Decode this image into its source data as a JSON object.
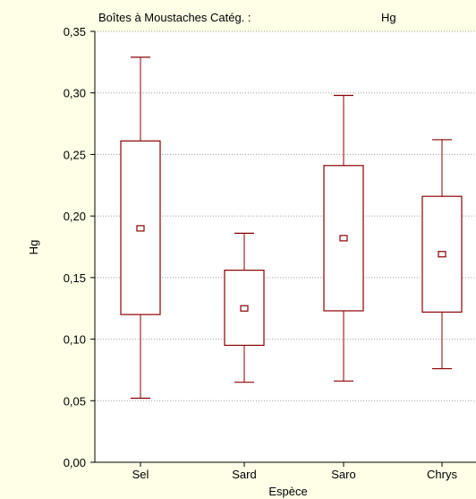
{
  "chart_data": {
    "type": "boxplot",
    "title": "Boîtes à Moustaches Catég. :",
    "variable": "Hg",
    "xlabel": "Espèce",
    "ylabel": "Hg",
    "categories": [
      "Sel",
      "Sard",
      "Saro",
      "Chrys"
    ],
    "ylim": [
      0.0,
      0.35
    ],
    "yticks": [
      "0,00",
      "0,05",
      "0,10",
      "0,15",
      "0,20",
      "0,25",
      "0,30",
      "0,35"
    ],
    "grid": "dotted horizontal",
    "boxes": [
      {
        "category": "Sel",
        "whisker_low": 0.052,
        "q1": 0.12,
        "center": 0.19,
        "q3": 0.261,
        "whisker_high": 0.329
      },
      {
        "category": "Sard",
        "whisker_low": 0.065,
        "q1": 0.095,
        "center": 0.125,
        "q3": 0.156,
        "whisker_high": 0.186
      },
      {
        "category": "Saro",
        "whisker_low": 0.066,
        "q1": 0.123,
        "center": 0.182,
        "q3": 0.241,
        "whisker_high": 0.298
      },
      {
        "category": "Chrys",
        "whisker_low": 0.076,
        "q1": 0.122,
        "center": 0.169,
        "q3": 0.216,
        "whisker_high": 0.262
      }
    ],
    "colors": {
      "box": "#8B0000",
      "background": "#FFFFE7",
      "plot_background": "#FFFFFF"
    }
  }
}
